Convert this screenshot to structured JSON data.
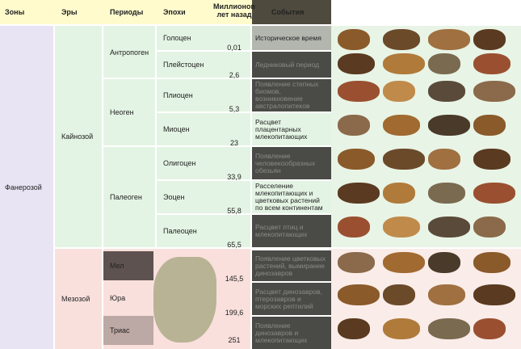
{
  "headers": {
    "zones": "Зоны",
    "eras": "Эры",
    "periods": "Периоды",
    "epochs": "Эпохи",
    "mya": "Миллионов лет назад",
    "events": "События"
  },
  "zone": "Фанерозой",
  "eras": [
    "Кайнозой",
    "Мезозой"
  ],
  "periods": [
    "Антропоген",
    "Неоген",
    "Палеоген",
    "Мел",
    "Юра",
    "Триас"
  ],
  "epochs": [
    "Голоцен",
    "Плейстоцен",
    "Плиоцен",
    "Миоцен",
    "Олигоцен",
    "Эоцен",
    "Палеоцен"
  ],
  "boundaries": [
    "0,01",
    "2,6",
    "5,3",
    "23",
    "33,9",
    "55,8",
    "65,5",
    "145,5",
    "199,6",
    "251"
  ],
  "events": [
    "Историческое время",
    "Ледниковый период",
    "Появление степных биомов, возникновение австралопитеков",
    "Расцвет плацентарных млекопитающих",
    "Появление человекообразных обезьян",
    "Расселение млекопитающих и цветковых растений по всем континентам",
    "Расцвет птиц и млекопитающих",
    "Появление цветковых растений, вымирание динозавров",
    "Расцвет динозавров, птерозавров и морских рептилий",
    "Появление динозавров и млекопитающих"
  ],
  "colors": {
    "header": "#fffbcc",
    "zone": "#e8e4f4",
    "cenozoic": "#e4f4e4",
    "mesozoic": "#f9e0dc",
    "event_dark": "#4a4a46"
  }
}
